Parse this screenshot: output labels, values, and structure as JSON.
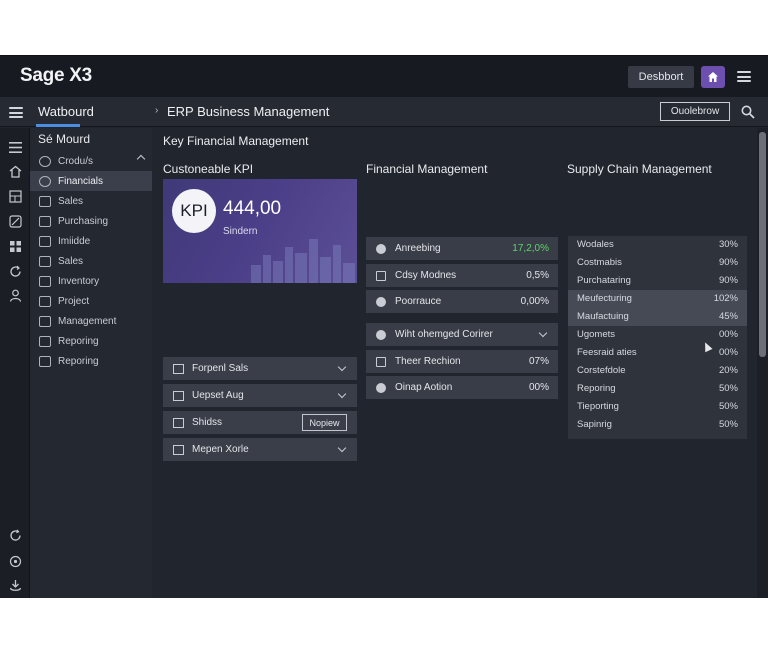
{
  "header": {
    "app_title": "Sage X3",
    "dashboard_button": "Desbbort",
    "home_icon": "home-icon",
    "menu_icon": "hamburger-icon"
  },
  "subheader": {
    "title": "Watbourd",
    "breadcrumb_sep": "›",
    "breadcrumb": "ERP Business Management",
    "action_button": "Ouolebrow",
    "search_icon": "search-icon"
  },
  "sidebar": {
    "heading": "Sé Mourd",
    "items": [
      {
        "label": "Crodu/s",
        "expanded": true
      },
      {
        "label": "Financials",
        "active": true
      },
      {
        "label": "Sales"
      },
      {
        "label": "Purchasing"
      },
      {
        "label": "Imiidde"
      },
      {
        "label": "Sales"
      },
      {
        "label": "Inventory"
      },
      {
        "label": "Project"
      },
      {
        "label": "Management"
      },
      {
        "label": "Reporing"
      },
      {
        "label": "Reporing"
      }
    ]
  },
  "rail_icons": [
    "menu-icon",
    "home-icon",
    "chart-icon",
    "tag-icon",
    "grid-icon",
    "refresh-icon",
    "user-icon",
    "sync-icon",
    "target-icon",
    "download-icon"
  ],
  "main": {
    "section_title": "Key Financial Management",
    "kpi": {
      "title": "Custoneable KPI",
      "badge": "KPI",
      "value": "444,00",
      "subtitle": "Sindern"
    },
    "kpi_dropdowns": [
      {
        "label": "Forpenl Sals",
        "type": "chevron"
      },
      {
        "label": "Uepset Aug",
        "type": "chevron"
      },
      {
        "label": "Shidss",
        "type": "button",
        "button_label": "Nopiew"
      },
      {
        "label": "Mepen Xorle",
        "type": "chevron"
      }
    ],
    "financial": {
      "title": "Financial Management",
      "rows": [
        {
          "label": "Anreebing",
          "value": "17,2,0%",
          "green": true
        },
        {
          "label": "Cdsy Modnes",
          "value": "0,5%"
        },
        {
          "label": "Poorrauce",
          "value": "0,00%"
        }
      ],
      "rows2": [
        {
          "label": "Wiht ohemged Corirer",
          "chevron": true
        },
        {
          "label": "Theer Rechion",
          "value": "07%"
        },
        {
          "label": "Oinap Aotion",
          "value": "00%"
        }
      ]
    },
    "supply": {
      "title": "Supply Chain Management",
      "rows": [
        {
          "name": "Wodales",
          "value": "30%"
        },
        {
          "name": "Costmabis",
          "value": "90%"
        },
        {
          "name": "Purchataring",
          "value": "90%"
        },
        {
          "name": "Meufecturing",
          "value": "102%",
          "highlight": true
        },
        {
          "name": "Maufactuing",
          "value": "45%",
          "highlight": true
        },
        {
          "name": "Ugomets",
          "value": "00%"
        },
        {
          "name": "Feesraid aties",
          "value": "00%"
        },
        {
          "name": "Corstefdole",
          "value": "20%"
        },
        {
          "name": "Reporing",
          "value": "50%"
        },
        {
          "name": "Tieporting",
          "value": "50%"
        },
        {
          "name": "Sapinrig",
          "value": "50%"
        }
      ]
    }
  }
}
